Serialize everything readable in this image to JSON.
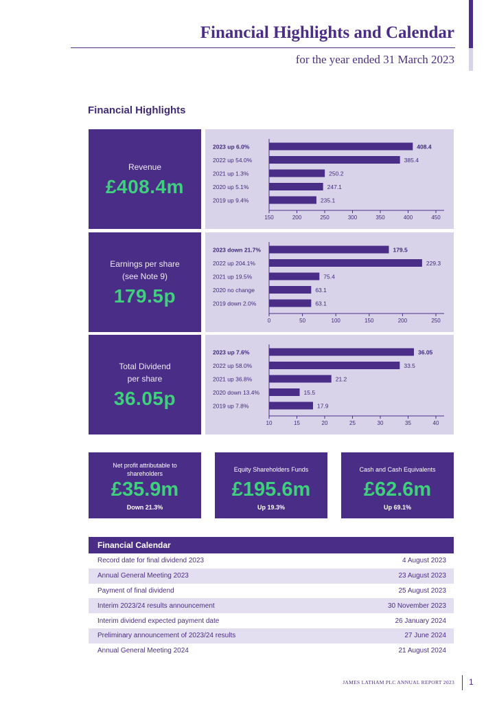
{
  "header": {
    "title": "Financial Highlights and Calendar",
    "subtitle": "for the year ended 31 March 2023"
  },
  "highlights": {
    "title": "Financial Highlights",
    "blocks": [
      {
        "label": "Revenue",
        "value": "£408.4m"
      },
      {
        "label": "Earnings per share\n(see Note 9)",
        "value": "179.5p"
      },
      {
        "label": "Total Dividend\nper share",
        "value": "36.05p"
      }
    ]
  },
  "chart_data": [
    {
      "type": "bar",
      "orientation": "horizontal",
      "categories": [
        "2023 up 6.0%",
        "2022 up 54.0%",
        "2021 up 1.3%",
        "2020 up 5.1%",
        "2019 up 9.4%"
      ],
      "values": [
        408.4,
        385.4,
        250.2,
        247.1,
        235.1
      ],
      "value_labels": [
        "408.4",
        "385.4",
        "250.2",
        "247.1",
        "235.1"
      ],
      "xlim": [
        150,
        450
      ],
      "xticks": [
        "150",
        "200",
        "250",
        "300",
        "350",
        "400",
        "450"
      ],
      "tick_values": [
        150,
        200,
        250,
        300,
        350,
        400,
        450
      ],
      "bold_first": true,
      "colors": {
        "bar": "#4a2d86",
        "background": "#d9d3ea"
      }
    },
    {
      "type": "bar",
      "orientation": "horizontal",
      "categories": [
        "2023 down 21.7%",
        "2022 up 204.1%",
        "2021 up 19.5%",
        "2020 no change",
        "2019 down 2.0%"
      ],
      "values": [
        179.5,
        229.3,
        75.4,
        63.1,
        63.1
      ],
      "value_labels": [
        "179.5",
        "229.3",
        "75.4",
        "63.1",
        "63.1"
      ],
      "xlim": [
        0,
        250
      ],
      "xticks": [
        "0",
        "50",
        "100",
        "150",
        "200",
        "250"
      ],
      "tick_values": [
        0,
        50,
        100,
        150,
        200,
        250
      ],
      "bold_first": true,
      "colors": {
        "bar": "#4a2d86",
        "background": "#d9d3ea"
      }
    },
    {
      "type": "bar",
      "orientation": "horizontal",
      "categories": [
        "2023 up 7.6%",
        "2022 up 58.0%",
        "2021 up 36.8%",
        "2020 down 13.4%",
        "2019 up 7.8%"
      ],
      "values": [
        36.05,
        33.5,
        21.2,
        15.5,
        17.9
      ],
      "value_labels": [
        "36.05",
        "33.5",
        "21.2",
        "15.5",
        "17.9"
      ],
      "xlim": [
        10,
        40
      ],
      "xticks": [
        "10",
        "15",
        "20",
        "25",
        "30",
        "35",
        "40"
      ],
      "tick_values": [
        10,
        15,
        20,
        25,
        30,
        35,
        40
      ],
      "bold_first": true,
      "colors": {
        "bar": "#4a2d86",
        "background": "#d9d3ea"
      }
    }
  ],
  "stats": [
    {
      "label": "Net profit attributable to\nshareholders",
      "value": "£35.9m",
      "change": "Down 21.3%"
    },
    {
      "label": "Equity Shareholders Funds",
      "value": "£195.6m",
      "change": "Up 19.3%"
    },
    {
      "label": "Cash and Cash Equivalents",
      "value": "£62.6m",
      "change": "Up 69.1%"
    }
  ],
  "calendar": {
    "title": "Financial Calendar",
    "rows": [
      {
        "event": "Record date for final dividend 2023",
        "date": "4 August 2023"
      },
      {
        "event": "Annual General Meeting 2023",
        "date": "23 August 2023"
      },
      {
        "event": "Payment of final dividend",
        "date": "25 August 2023"
      },
      {
        "event": "Interim 2023/24 results announcement",
        "date": "30 November 2023"
      },
      {
        "event": "Interim dividend expected payment date",
        "date": "26 January 2024"
      },
      {
        "event": "Preliminary announcement of 2023/24 results",
        "date": "27 June 2024"
      },
      {
        "event": "Annual General Meeting 2024",
        "date": "21 August 2024"
      }
    ]
  },
  "footer": {
    "text": "JAMES LATHAM PLC ANNUAL REPORT 2023",
    "page_number": "1"
  },
  "colors": {
    "accent": "#4a2d86",
    "highlight_green": "#3fd07e",
    "panel": "#d9d3ea"
  }
}
